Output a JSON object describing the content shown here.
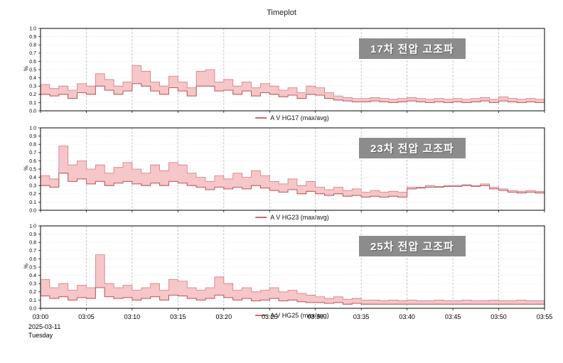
{
  "header": {
    "title": "Timeplot"
  },
  "y_axis": {
    "unit": "%",
    "min": 0.0,
    "max": 1.0,
    "step": 0.1
  },
  "x_axis": {
    "tick_labels": [
      "03:00",
      "03:05",
      "03:10",
      "03:15",
      "03:20",
      "03:25",
      "03:30",
      "03:35",
      "03:40",
      "03:45",
      "03:50",
      "03:55"
    ],
    "date": "2025-03-11",
    "weekday": "Tuesday"
  },
  "colors": {
    "band_fill": "#f6c6c8",
    "band_stroke": "#cf7d81",
    "avg_line": "#bb5a5f",
    "grid_vertical": "#b0b0b0",
    "grid_horizontal": "#dcdcdc",
    "axis": "#000000",
    "label_box_bg": "#8c8c8c",
    "label_box_text": "#ffffff",
    "legend_marker": "#c96a6e"
  },
  "chart_data": [
    {
      "type": "area",
      "title": "17차 전압 고조파",
      "legend": "A V HG17 (max/avg)",
      "ylabel": "%",
      "ylim": [
        0.0,
        1.0
      ],
      "x_range": [
        "03:00",
        "03:55"
      ],
      "x_step_minutes": 1,
      "series": [
        {
          "name": "max",
          "values": [
            0.32,
            0.27,
            0.3,
            0.25,
            0.33,
            0.3,
            0.45,
            0.38,
            0.3,
            0.35,
            0.55,
            0.48,
            0.35,
            0.3,
            0.42,
            0.35,
            0.28,
            0.48,
            0.5,
            0.35,
            0.38,
            0.3,
            0.35,
            0.28,
            0.33,
            0.3,
            0.25,
            0.28,
            0.22,
            0.3,
            0.28,
            0.22,
            0.18,
            0.16,
            0.15,
            0.15,
            0.16,
            0.15,
            0.14,
            0.15,
            0.16,
            0.15,
            0.14,
            0.15,
            0.14,
            0.15,
            0.14,
            0.15,
            0.16,
            0.14,
            0.17,
            0.15,
            0.14,
            0.15,
            0.14,
            0.15
          ]
        },
        {
          "name": "avg",
          "values": [
            0.2,
            0.18,
            0.2,
            0.15,
            0.22,
            0.2,
            0.3,
            0.25,
            0.2,
            0.24,
            0.33,
            0.3,
            0.24,
            0.2,
            0.28,
            0.24,
            0.18,
            0.3,
            0.3,
            0.24,
            0.25,
            0.2,
            0.24,
            0.18,
            0.22,
            0.2,
            0.17,
            0.19,
            0.15,
            0.2,
            0.19,
            0.15,
            0.13,
            0.12,
            0.11,
            0.11,
            0.12,
            0.11,
            0.1,
            0.11,
            0.12,
            0.11,
            0.1,
            0.11,
            0.1,
            0.11,
            0.1,
            0.11,
            0.12,
            0.1,
            0.12,
            0.11,
            0.1,
            0.11,
            0.1,
            0.11
          ]
        }
      ]
    },
    {
      "type": "area",
      "title": "23차 전압 고조파",
      "legend": "A V HG23 (max/avg)",
      "ylabel": "%",
      "ylim": [
        0.0,
        1.0
      ],
      "x_range": [
        "03:00",
        "03:55"
      ],
      "x_step_minutes": 1,
      "series": [
        {
          "name": "max",
          "values": [
            0.42,
            0.38,
            0.78,
            0.55,
            0.6,
            0.5,
            0.55,
            0.45,
            0.52,
            0.58,
            0.5,
            0.45,
            0.55,
            0.48,
            0.58,
            0.55,
            0.45,
            0.4,
            0.35,
            0.42,
            0.38,
            0.45,
            0.4,
            0.48,
            0.42,
            0.35,
            0.32,
            0.38,
            0.3,
            0.35,
            0.28,
            0.25,
            0.28,
            0.24,
            0.26,
            0.22,
            0.24,
            0.22,
            0.23,
            0.22,
            0.28,
            0.28,
            0.3,
            0.29,
            0.3,
            0.3,
            0.31,
            0.3,
            0.32,
            0.28,
            0.26,
            0.24,
            0.23,
            0.24,
            0.23,
            0.22
          ]
        },
        {
          "name": "avg",
          "values": [
            0.3,
            0.28,
            0.45,
            0.35,
            0.38,
            0.32,
            0.35,
            0.3,
            0.33,
            0.35,
            0.32,
            0.3,
            0.33,
            0.3,
            0.35,
            0.33,
            0.3,
            0.28,
            0.25,
            0.28,
            0.26,
            0.28,
            0.26,
            0.3,
            0.27,
            0.24,
            0.22,
            0.25,
            0.2,
            0.23,
            0.2,
            0.18,
            0.2,
            0.17,
            0.18,
            0.16,
            0.17,
            0.16,
            0.17,
            0.16,
            0.26,
            0.27,
            0.28,
            0.28,
            0.29,
            0.29,
            0.3,
            0.29,
            0.3,
            0.26,
            0.24,
            0.22,
            0.21,
            0.22,
            0.21,
            0.2
          ]
        }
      ]
    },
    {
      "type": "area",
      "title": "25차 전압 고조파",
      "legend": "A V HG25 (max/avg)",
      "ylabel": "%",
      "ylim": [
        0.0,
        1.0
      ],
      "x_range": [
        "03:00",
        "03:55"
      ],
      "x_step_minutes": 1,
      "series": [
        {
          "name": "max",
          "values": [
            0.35,
            0.25,
            0.3,
            0.22,
            0.28,
            0.25,
            0.65,
            0.3,
            0.25,
            0.28,
            0.22,
            0.25,
            0.3,
            0.22,
            0.35,
            0.33,
            0.25,
            0.22,
            0.25,
            0.38,
            0.3,
            0.22,
            0.25,
            0.2,
            0.22,
            0.25,
            0.2,
            0.22,
            0.18,
            0.16,
            0.14,
            0.12,
            0.14,
            0.11,
            0.12,
            0.1,
            0.1,
            0.09,
            0.1,
            0.09,
            0.1,
            0.09,
            0.09,
            0.1,
            0.09,
            0.09,
            0.1,
            0.09,
            0.09,
            0.1,
            0.09,
            0.09,
            0.1,
            0.09,
            0.09,
            0.09
          ]
        },
        {
          "name": "avg",
          "values": [
            0.15,
            0.12,
            0.14,
            0.1,
            0.13,
            0.12,
            0.25,
            0.14,
            0.12,
            0.13,
            0.1,
            0.12,
            0.14,
            0.1,
            0.16,
            0.15,
            0.12,
            0.1,
            0.12,
            0.16,
            0.13,
            0.1,
            0.12,
            0.09,
            0.1,
            0.12,
            0.09,
            0.1,
            0.08,
            0.07,
            0.07,
            0.06,
            0.07,
            0.05,
            0.06,
            0.05,
            0.05,
            0.05,
            0.05,
            0.05,
            0.05,
            0.05,
            0.05,
            0.05,
            0.05,
            0.05,
            0.05,
            0.05,
            0.05,
            0.05,
            0.05,
            0.05,
            0.05,
            0.05,
            0.05,
            0.05
          ]
        }
      ]
    }
  ]
}
